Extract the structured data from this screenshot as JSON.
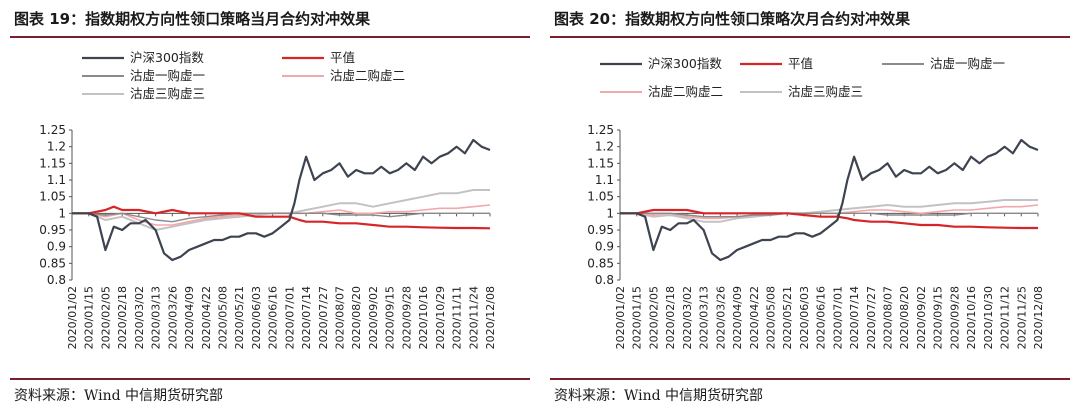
{
  "figures": [
    {
      "title": "图表 19：指数期权方向性领口策略当月合约对冲效果",
      "source": "资料来源：Wind 中信期货研究部"
    },
    {
      "title": "图表 20：指数期权方向性领口策略次月合约对冲效果",
      "source": "资料来源：Wind 中信期货研究部"
    }
  ],
  "chart_data": [
    {
      "type": "line",
      "title": "图表 19：指数期权方向性领口策略当月合约对冲效果",
      "ylim": [
        0.8,
        1.25
      ],
      "y_ticks": [
        "1.25",
        "1.2",
        "1.15",
        "1.1",
        "1.05",
        "1",
        "0.95",
        "0.9",
        "0.85",
        "0.8"
      ],
      "x_ticks": [
        "2020/01/02",
        "2020/01/15",
        "2020/02/05",
        "2020/02/18",
        "2020/03/02",
        "2020/03/13",
        "2020/03/26",
        "2020/04/09",
        "2020/04/22",
        "2020/05/08",
        "2020/05/21",
        "2020/06/03",
        "2020/06/16",
        "2020/07/01",
        "2020/07/14",
        "2020/07/27",
        "2020/08/07",
        "2020/08/20",
        "2020/09/02",
        "2020/09/15",
        "2020/09/28",
        "2020/10/16",
        "2020/10/29",
        "2020/11/11",
        "2020/11/24",
        "2020/12/08"
      ],
      "legend_placement": "top",
      "series": [
        {
          "name": "沪深300指数",
          "color": "#3d4450",
          "width": 2.2,
          "x": [
            0,
            1,
            1.5,
            2,
            2.5,
            3,
            3.5,
            4,
            4.4,
            5,
            5.5,
            6,
            6.5,
            7,
            7.5,
            8,
            8.5,
            9,
            9.5,
            10,
            10.5,
            11,
            11.5,
            12,
            12.5,
            13,
            13.3,
            13.6,
            14,
            14.5,
            15,
            15.5,
            16,
            16.5,
            17,
            17.5,
            18,
            18.5,
            19,
            19.5,
            20,
            20.5,
            21,
            21.5,
            22,
            22.5,
            23,
            23.5,
            24,
            24.5,
            25
          ],
          "values": [
            1.0,
            1.0,
            0.99,
            0.89,
            0.96,
            0.95,
            0.97,
            0.97,
            0.98,
            0.95,
            0.88,
            0.86,
            0.87,
            0.89,
            0.9,
            0.91,
            0.92,
            0.92,
            0.93,
            0.93,
            0.94,
            0.94,
            0.93,
            0.94,
            0.96,
            0.98,
            1.03,
            1.1,
            1.17,
            1.1,
            1.12,
            1.13,
            1.15,
            1.11,
            1.13,
            1.12,
            1.12,
            1.14,
            1.12,
            1.13,
            1.15,
            1.13,
            1.17,
            1.15,
            1.17,
            1.18,
            1.2,
            1.18,
            1.22,
            1.2,
            1.19
          ]
        },
        {
          "name": "平值",
          "color": "#d62528",
          "width": 2.2,
          "x": [
            0,
            1,
            2,
            2.5,
            3,
            4,
            5,
            6,
            7,
            8,
            9,
            10,
            11,
            12,
            13,
            13.6,
            14,
            15,
            16,
            17,
            18,
            19,
            20,
            21,
            22,
            23,
            24,
            25
          ],
          "values": [
            1.0,
            1.0,
            1.01,
            1.02,
            1.01,
            1.01,
            1.0,
            1.01,
            1.0,
            1.0,
            1.0,
            1.0,
            0.99,
            0.99,
            0.99,
            0.98,
            0.975,
            0.975,
            0.97,
            0.97,
            0.965,
            0.96,
            0.96,
            0.958,
            0.957,
            0.956,
            0.956,
            0.955
          ]
        },
        {
          "name": "沽虚一购虚一",
          "color": "#8a8a8a",
          "width": 1.4,
          "x": [
            0,
            1,
            2,
            3,
            4,
            5,
            6,
            7,
            8,
            9,
            10,
            11,
            12,
            13,
            14,
            15,
            16,
            17,
            18,
            19,
            20,
            21,
            22,
            23,
            24,
            25
          ],
          "values": [
            1.0,
            1.0,
            0.995,
            1.0,
            0.99,
            0.98,
            0.975,
            0.985,
            0.99,
            0.995,
            1.0,
            1.0,
            1.0,
            1.0,
            1.0,
            1.0,
            0.995,
            0.995,
            0.995,
            0.99,
            0.995,
            1.0,
            1.0,
            1.0,
            1.0,
            1.0
          ]
        },
        {
          "name": "沽虚二购虚二",
          "color": "#f2a7ab",
          "width": 1.6,
          "x": [
            0,
            1,
            2,
            3,
            4,
            5,
            6,
            7,
            8,
            9,
            10,
            11,
            12,
            13,
            14,
            15,
            16,
            17,
            18,
            19,
            20,
            21,
            22,
            23,
            24,
            25
          ],
          "values": [
            1.0,
            1.0,
            0.99,
            1.0,
            0.98,
            0.965,
            0.965,
            0.975,
            0.985,
            0.99,
            0.995,
            1.0,
            1.0,
            1.0,
            1.0,
            1.005,
            1.01,
            1.0,
            1.0,
            1.005,
            1.005,
            1.01,
            1.015,
            1.015,
            1.02,
            1.025
          ]
        },
        {
          "name": "沽虚三购虚三",
          "color": "#c2c2c2",
          "width": 2.0,
          "x": [
            0,
            1,
            2,
            3,
            4,
            5,
            6,
            7,
            8,
            9,
            10,
            11,
            12,
            13,
            14,
            15,
            16,
            17,
            18,
            19,
            20,
            21,
            22,
            23,
            24,
            25
          ],
          "values": [
            1.0,
            1.0,
            0.98,
            0.99,
            0.97,
            0.95,
            0.96,
            0.97,
            0.98,
            0.985,
            0.99,
            0.995,
            1.0,
            1.0,
            1.01,
            1.02,
            1.03,
            1.03,
            1.02,
            1.03,
            1.04,
            1.05,
            1.06,
            1.06,
            1.07,
            1.07
          ]
        }
      ]
    },
    {
      "type": "line",
      "title": "图表 20：指数期权方向性领口策略次月合约对冲效果",
      "ylim": [
        0.8,
        1.25
      ],
      "y_ticks": [
        "1.25",
        "1.2",
        "1.15",
        "1.1",
        "1.05",
        "1",
        "0.95",
        "0.9",
        "0.85",
        "0.8"
      ],
      "x_ticks": [
        "2020/01/02",
        "2020/01/15",
        "2020/02/05",
        "2020/02/18",
        "2020/03/02",
        "2020/03/13",
        "2020/03/26",
        "2020/04/09",
        "2020/04/22",
        "2020/05/08",
        "2020/05/21",
        "2020/06/03",
        "2020/06/16",
        "2020/07/01",
        "2020/07/14",
        "2020/07/27",
        "2020/08/07",
        "2020/08/20",
        "2020/09/02",
        "2020/09/15",
        "2020/09/28",
        "2020/10/16",
        "2020/10/30",
        "2020/11/12",
        "2020/11/25",
        "2020/12/08"
      ],
      "legend_placement": "top",
      "series": [
        {
          "name": "沪深300指数",
          "color": "#3d4450",
          "width": 2.2,
          "x": [
            0,
            1,
            1.5,
            2,
            2.5,
            3,
            3.5,
            4,
            4.4,
            5,
            5.5,
            6,
            6.5,
            7,
            7.5,
            8,
            8.5,
            9,
            9.5,
            10,
            10.5,
            11,
            11.5,
            12,
            12.5,
            13,
            13.3,
            13.6,
            14,
            14.5,
            15,
            15.5,
            16,
            16.5,
            17,
            17.5,
            18,
            18.5,
            19,
            19.5,
            20,
            20.5,
            21,
            21.5,
            22,
            22.5,
            23,
            23.5,
            24,
            24.5,
            25
          ],
          "values": [
            1.0,
            1.0,
            0.99,
            0.89,
            0.96,
            0.95,
            0.97,
            0.97,
            0.98,
            0.95,
            0.88,
            0.86,
            0.87,
            0.89,
            0.9,
            0.91,
            0.92,
            0.92,
            0.93,
            0.93,
            0.94,
            0.94,
            0.93,
            0.94,
            0.96,
            0.98,
            1.03,
            1.1,
            1.17,
            1.1,
            1.12,
            1.13,
            1.15,
            1.11,
            1.13,
            1.12,
            1.12,
            1.14,
            1.12,
            1.13,
            1.15,
            1.13,
            1.17,
            1.15,
            1.17,
            1.18,
            1.2,
            1.18,
            1.22,
            1.2,
            1.19
          ]
        },
        {
          "name": "平值",
          "color": "#d62528",
          "width": 2.2,
          "x": [
            0,
            1,
            2,
            3,
            4,
            5,
            6,
            7,
            8,
            9,
            10,
            11,
            12,
            13,
            13.6,
            14,
            15,
            16,
            17,
            18,
            19,
            20,
            21,
            22,
            23,
            24,
            25
          ],
          "values": [
            1.0,
            1.0,
            1.01,
            1.01,
            1.01,
            1.0,
            1.0,
            1.0,
            1.0,
            1.0,
            1.0,
            0.995,
            0.99,
            0.99,
            0.985,
            0.98,
            0.975,
            0.975,
            0.97,
            0.965,
            0.965,
            0.96,
            0.96,
            0.958,
            0.957,
            0.956,
            0.956
          ]
        },
        {
          "name": "沽虚一购虚一",
          "color": "#8a8a8a",
          "width": 1.4,
          "x": [
            0,
            1,
            2,
            3,
            4,
            5,
            6,
            7,
            8,
            9,
            10,
            11,
            12,
            13,
            14,
            15,
            16,
            17,
            18,
            19,
            20,
            21,
            22,
            23,
            24,
            25
          ],
          "values": [
            1.0,
            1.0,
            1.0,
            1.0,
            0.995,
            0.99,
            0.99,
            0.99,
            0.995,
            0.995,
            1.0,
            1.0,
            1.0,
            1.0,
            1.0,
            1.0,
            0.995,
            0.995,
            0.995,
            0.995,
            0.995,
            1.0,
            1.0,
            1.0,
            1.0,
            1.0
          ]
        },
        {
          "name": "沽虚二购虚二",
          "color": "#f2a7ab",
          "width": 1.6,
          "x": [
            0,
            1,
            2,
            3,
            4,
            5,
            6,
            7,
            8,
            9,
            10,
            11,
            12,
            13,
            14,
            15,
            16,
            17,
            18,
            19,
            20,
            21,
            22,
            23,
            24,
            25
          ],
          "values": [
            1.0,
            1.0,
            0.995,
            1.0,
            0.99,
            0.985,
            0.985,
            0.99,
            0.995,
            0.995,
            1.0,
            1.0,
            1.0,
            1.0,
            1.005,
            1.01,
            1.01,
            1.005,
            1.0,
            1.005,
            1.01,
            1.01,
            1.015,
            1.02,
            1.02,
            1.025
          ]
        },
        {
          "name": "沽虚三购虚三",
          "color": "#c2c2c2",
          "width": 2.0,
          "x": [
            0,
            1,
            2,
            3,
            4,
            5,
            6,
            7,
            8,
            9,
            10,
            11,
            12,
            13,
            14,
            15,
            16,
            17,
            18,
            19,
            20,
            21,
            22,
            23,
            24,
            25
          ],
          "values": [
            1.0,
            1.0,
            0.99,
            0.995,
            0.985,
            0.975,
            0.975,
            0.985,
            0.99,
            0.995,
            1.0,
            1.0,
            1.005,
            1.01,
            1.015,
            1.02,
            1.025,
            1.02,
            1.02,
            1.025,
            1.03,
            1.03,
            1.035,
            1.04,
            1.04,
            1.04
          ]
        }
      ]
    }
  ]
}
